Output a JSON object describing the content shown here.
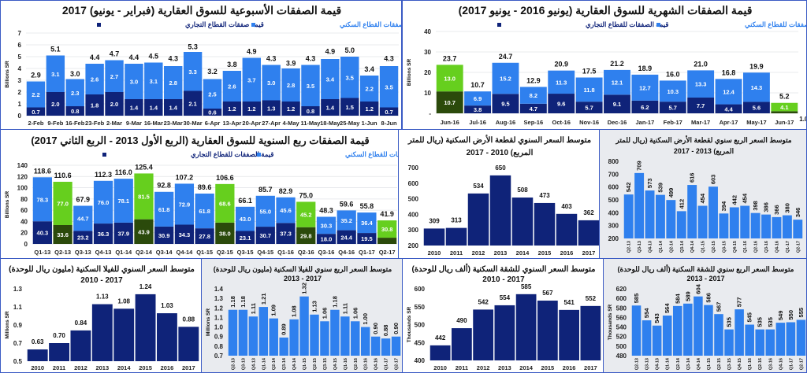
{
  "colors": {
    "commercial": "#0f2379",
    "residential": "#2f80ee",
    "highlight_commercial": "#2b4a0b",
    "highlight_residential": "#66cf1e",
    "annual_bar": "#0f2379",
    "quarterly_bar": "#2f80ee",
    "panel_gray": "#e9ebef",
    "border": "#3b5bc4"
  },
  "chart_data": [
    {
      "id": "weekly",
      "type": "bar",
      "stacked": true,
      "title_lines": [
        "قيمة الصفقات الأسبوعية للسوق العقارية (فبراير - يونيو) 2017"
      ],
      "ylabel": "Billions SR",
      "ylim": [
        0,
        7
      ],
      "yticks": [
        0,
        1,
        2,
        3,
        4,
        5,
        6,
        7
      ],
      "ytick_labels": [
        "0",
        "1",
        "2",
        "3",
        "4",
        "5",
        "6",
        "7"
      ],
      "grid": true,
      "decimals": 1,
      "legend": [
        "قيمة صفقات القطاع التجاري",
        "قيمة صفقات القطاع السكني"
      ],
      "legend_placement": "top",
      "categories": [
        "2-Feb",
        "9-Feb",
        "16-Feb",
        "23-Feb",
        "2-Mar",
        "9-Mar",
        "16-Mar",
        "23-Mar",
        "30-Mar",
        "6-Apr",
        "13-Apr",
        "20-Apr",
        "27-Apr",
        "4-May",
        "11-May",
        "18-May",
        "25-May",
        "1-Jun",
        "8-Jun"
      ],
      "series": [
        {
          "name": "قيمة صفقات القطاع التجاري",
          "values": [
            0.7,
            2.0,
            0.8,
            1.8,
            2.0,
            1.4,
            1.4,
            1.4,
            2.1,
            0.6,
            1.2,
            1.2,
            1.3,
            1.2,
            0.8,
            1.4,
            1.5,
            1.2,
            0.7
          ]
        },
        {
          "name": "قيمة صفقات القطاع السكني",
          "values": [
            2.2,
            3.1,
            2.3,
            2.6,
            2.7,
            3.0,
            3.1,
            2.8,
            3.3,
            2.5,
            2.6,
            3.7,
            3.0,
            2.8,
            3.5,
            3.4,
            3.5,
            2.2,
            3.5
          ]
        }
      ],
      "totals": [
        2.9,
        5.1,
        3.0,
        4.4,
        4.7,
        4.4,
        4.5,
        4.3,
        5.3,
        3.2,
        3.8,
        4.9,
        4.3,
        3.9,
        4.3,
        4.9,
        5.0,
        3.4,
        4.3
      ],
      "highlight_categories": []
    },
    {
      "id": "monthly",
      "type": "bar",
      "stacked": true,
      "title_lines": [
        "قيمة الصفقات الشهرية للسوق العقارية (يونيو 2016 - يونيو 2017)"
      ],
      "ylabel": "Billions SR",
      "ylim": [
        0,
        40
      ],
      "yticks": [
        0,
        10,
        20,
        30,
        40
      ],
      "ytick_labels": [
        "-",
        "10",
        "20",
        "30",
        "40"
      ],
      "grid": true,
      "decimals": 1,
      "legend": [
        "قيمة الصفقات للقطاع التجاري",
        "قيمة الصفقات للقطاع السكني"
      ],
      "legend_placement": "top",
      "categories": [
        "Jun-16",
        "Jul-16",
        "Aug-16",
        "Sep-16",
        "Oct-16",
        "Nov-16",
        "Dec-16",
        "Jan-17",
        "Feb-17",
        "Mar-17",
        "Apr-17",
        "May-17",
        "Jun-17"
      ],
      "series": [
        {
          "name": "قيمة الصفقات للقطاع التجاري",
          "values": [
            10.7,
            3.8,
            9.5,
            4.7,
            9.6,
            5.7,
            9.1,
            6.2,
            5.7,
            7.7,
            4.4,
            5.6,
            1.0
          ]
        },
        {
          "name": "قيمة الصفقات للقطاع السكني",
          "values": [
            13.0,
            6.9,
            15.2,
            8.2,
            11.3,
            11.8,
            12.1,
            12.7,
            10.3,
            13.3,
            12.4,
            14.3,
            4.1
          ]
        }
      ],
      "totals": [
        23.7,
        10.7,
        24.7,
        12.9,
        20.9,
        17.5,
        21.2,
        18.9,
        16.0,
        21.0,
        16.8,
        19.9,
        5.2
      ],
      "highlight_categories": [
        "Jun-16",
        "Jun-17"
      ]
    },
    {
      "id": "quarterly",
      "type": "bar",
      "stacked": true,
      "title_lines": [
        "قيمة الصفقات ربع السنوية للسوق العقارية (الربع الأول 2013 - الربع الثاني 2017)"
      ],
      "ylabel": "Billions SR",
      "ylim": [
        0,
        140
      ],
      "yticks": [
        0,
        20,
        40,
        60,
        80,
        100,
        120,
        140
      ],
      "ytick_labels": [
        "0",
        "20",
        "40",
        "60",
        "80",
        "100",
        "120",
        "140"
      ],
      "grid": true,
      "decimals": 1,
      "legend": [
        "قيمة الصفقات للقطاع التجاري",
        "قيمة الصفقات للقطاع السكني"
      ],
      "legend_placement": "top",
      "categories": [
        "Q1-13",
        "Q2-13",
        "Q3-13",
        "Q4-13",
        "Q1-14",
        "Q2-14",
        "Q3-14",
        "Q4-14",
        "Q1-15",
        "Q2-15",
        "Q3-15",
        "Q4-15",
        "Q1-16",
        "Q2-16",
        "Q3-16",
        "Q4-16",
        "Q1-17",
        "Q2-17"
      ],
      "series": [
        {
          "name": "قيمة الصفقات للقطاع التجاري",
          "values": [
            40.3,
            33.6,
            23.2,
            36.3,
            37.9,
            43.9,
            30.9,
            34.3,
            27.8,
            38.0,
            23.1,
            30.7,
            37.3,
            29.8,
            18.0,
            24.4,
            19.5,
            11.1
          ]
        },
        {
          "name": "قيمة الصفقات للقطاع السكني",
          "values": [
            78.3,
            77.0,
            44.7,
            76.0,
            78.1,
            81.5,
            61.8,
            72.9,
            61.8,
            68.6,
            43.0,
            55.0,
            45.6,
            45.2,
            30.3,
            35.2,
            36.4,
            30.8
          ]
        }
      ],
      "totals": [
        118.6,
        110.6,
        67.9,
        112.3,
        116.0,
        125.4,
        92.8,
        107.2,
        89.6,
        106.6,
        66.1,
        85.7,
        82.9,
        75.0,
        48.3,
        59.6,
        55.8,
        41.9
      ],
      "highlight_categories": [
        "Q2-13",
        "Q2-14",
        "Q2-15",
        "Q2-16",
        "Q2-17"
      ]
    },
    {
      "id": "land_annual",
      "type": "bar",
      "stacked": false,
      "title_lines": [
        "متوسط السعر السنوي لقطعة الأرض السكنية (ريال للمتر",
        "المربع) 2010 - 2017"
      ],
      "ylabel": "",
      "ylim": [
        200,
        700
      ],
      "yticks": [
        200,
        300,
        400,
        500,
        600,
        700
      ],
      "ytick_labels": [
        "200",
        "300",
        "400",
        "500",
        "600",
        "700"
      ],
      "grid": false,
      "decimals": 0,
      "categories": [
        "2010",
        "2011",
        "2012",
        "2013",
        "2014",
        "2015",
        "2016",
        "2017"
      ],
      "values": [
        309,
        313,
        534,
        650,
        508,
        473,
        403,
        362
      ]
    },
    {
      "id": "land_quarterly",
      "type": "bar",
      "stacked": false,
      "title_lines": [
        "متوسط السعر الربع سنوي لقطعة الأرض السكنية (ريال للمتر",
        "المربع) 2013 - 2017"
      ],
      "ylabel": "",
      "ylim": [
        200,
        800
      ],
      "yticks": [
        200,
        300,
        400,
        500,
        600,
        700,
        800
      ],
      "ytick_labels": [
        "200",
        "300",
        "400",
        "500",
        "600",
        "700",
        "800"
      ],
      "grid": false,
      "decimals": 0,
      "categories": [
        "Q2-13",
        "Q3-13",
        "Q4-13",
        "Q1-14",
        "Q2-14",
        "Q3-14",
        "Q4-14",
        "Q1-15",
        "Q2-15",
        "Q3-15",
        "Q4-15",
        "Q1-16",
        "Q2-16",
        "Q3-16",
        "Q4-16",
        "Q1-17",
        "Q2-17"
      ],
      "values": [
        542,
        709,
        573,
        539,
        499,
        412,
        616,
        454,
        603,
        394,
        442,
        454,
        398,
        386,
        366,
        380,
        346
      ]
    },
    {
      "id": "villa_annual",
      "type": "bar",
      "stacked": false,
      "title_lines": [
        "متوسط السعر السنوي للفيلا السكنية  (مليون ريال للوحدة)",
        "2017 - 2010"
      ],
      "ylabel": "Millions SR",
      "ylim": [
        0.5,
        1.3
      ],
      "yticks": [
        0.5,
        0.7,
        0.9,
        1.1,
        1.3
      ],
      "ytick_labels": [
        "0.5",
        "0.7",
        "0.9",
        "1.1",
        "1.3"
      ],
      "grid": false,
      "decimals": 2,
      "categories": [
        "2010",
        "2011",
        "2012",
        "2013",
        "2014",
        "2015",
        "2016",
        "2017"
      ],
      "values": [
        0.63,
        0.7,
        0.84,
        1.13,
        1.08,
        1.24,
        1.03,
        0.88
      ]
    },
    {
      "id": "villa_quarterly",
      "type": "bar",
      "stacked": false,
      "title_lines": [
        "متوسط السعر الربع سنوي للفيلا السكنية  (مليون ريال للوحدة)",
        "2017 - 2013"
      ],
      "ylabel": "Millions SR",
      "ylim": [
        0.7,
        1.4
      ],
      "yticks": [
        0.7,
        0.8,
        0.9,
        1.0,
        1.1,
        1.2,
        1.3,
        1.4
      ],
      "ytick_labels": [
        "0.7",
        "0.8",
        "0.9",
        "1.0",
        "1.1",
        "1.2",
        "1.3",
        "1.4"
      ],
      "grid": false,
      "decimals": 2,
      "categories": [
        "Q2-13",
        "Q3-13",
        "Q4-13",
        "Q1-14",
        "Q2-14",
        "Q3-14",
        "Q4-14",
        "Q1-15",
        "Q2-15",
        "Q3-15",
        "Q4-15",
        "Q1-16",
        "Q2-16",
        "Q3-16",
        "Q4-16",
        "Q1-17",
        "Q2-17"
      ],
      "values": [
        1.18,
        1.18,
        1.11,
        1.21,
        1.09,
        0.89,
        1.08,
        1.32,
        1.13,
        1.06,
        1.18,
        1.11,
        1.06,
        1.0,
        0.9,
        0.88,
        0.9
      ]
    },
    {
      "id": "apartment_annual",
      "type": "bar",
      "stacked": false,
      "title_lines": [
        "متوسط السعر السنوي للشقة السكنية  (ألف ريال للوحدة)",
        "2017 - 2010"
      ],
      "ylabel": "Thousands SR",
      "ylim": [
        400,
        600
      ],
      "yticks": [
        400,
        450,
        500,
        550,
        600
      ],
      "ytick_labels": [
        "400",
        "450",
        "500",
        "550",
        "600"
      ],
      "grid": false,
      "decimals": 0,
      "categories": [
        "2010",
        "2011",
        "2012",
        "2013",
        "2014",
        "2015",
        "2016",
        "2017"
      ],
      "values": [
        442,
        490,
        542,
        554,
        585,
        567,
        541,
        552
      ]
    },
    {
      "id": "apartment_quarterly",
      "type": "bar",
      "stacked": false,
      "title_lines": [
        "متوسط السعر الربع سنوي للشقة السكنية  (ألف ريال للوحدة)",
        "2017 - 2013"
      ],
      "ylabel": "Thousands SR",
      "ylim": [
        480,
        620
      ],
      "yticks": [
        480,
        500,
        520,
        540,
        560,
        580,
        600,
        620
      ],
      "ytick_labels": [
        "480",
        "500",
        "520",
        "540",
        "560",
        "580",
        "600",
        "620"
      ],
      "grid": false,
      "decimals": 0,
      "categories": [
        "Q2-13",
        "Q3-13",
        "Q4-13",
        "Q1-14",
        "Q2-14",
        "Q3-14",
        "Q4-14",
        "Q1-15",
        "Q2-15",
        "Q3-15",
        "Q4-15",
        "Q1-16",
        "Q2-16",
        "Q3-16",
        "Q4-16",
        "Q1-17",
        "Q2-17"
      ],
      "values": [
        585,
        554,
        543,
        564,
        584,
        589,
        604,
        586,
        567,
        535,
        577,
        545,
        535,
        535,
        549,
        550,
        555
      ]
    }
  ]
}
